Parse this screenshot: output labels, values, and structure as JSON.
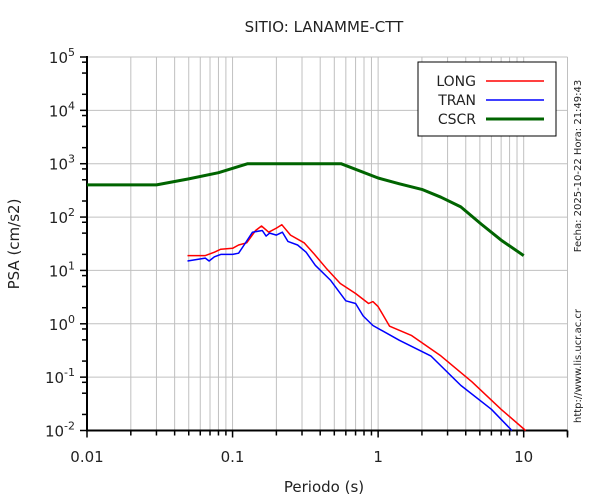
{
  "chart_data": {
    "type": "line",
    "title": "SITIO: LANAMME-CTT",
    "xlabel": "Periodo (s)",
    "ylabel": "PSA (cm/s2)",
    "xscale": "log",
    "yscale": "log",
    "xlim": [
      0.01,
      20
    ],
    "ylim": [
      0.01,
      100000
    ],
    "x_ticks": [
      {
        "v": 0.01,
        "label": "0.01"
      },
      {
        "v": 0.1,
        "label": "0.1"
      },
      {
        "v": 1,
        "label": "1"
      },
      {
        "v": 10,
        "label": "10"
      }
    ],
    "y_ticks": [
      {
        "v": 0.01,
        "base": "10",
        "exp": "-2"
      },
      {
        "v": 0.1,
        "base": "10",
        "exp": "-1"
      },
      {
        "v": 1,
        "base": "10",
        "exp": "0"
      },
      {
        "v": 10,
        "base": "10",
        "exp": "1"
      },
      {
        "v": 100,
        "base": "10",
        "exp": "2"
      },
      {
        "v": 1000,
        "base": "10",
        "exp": "3"
      },
      {
        "v": 10000,
        "base": "10",
        "exp": "4"
      },
      {
        "v": 100000,
        "base": "10",
        "exp": "5"
      }
    ],
    "grid": true,
    "legend_position": "top-right",
    "side_notes": [
      "Fecha: 2025-10-22  Hora: 21:49:43",
      "http://www.lis.ucr.ac.cr"
    ],
    "series": [
      {
        "name": "LONG",
        "color": "#ff0000",
        "width": 1.5,
        "x": [
          0.049,
          0.065,
          0.075,
          0.083,
          0.1,
          0.11,
          0.125,
          0.144,
          0.158,
          0.177,
          0.2,
          0.218,
          0.25,
          0.31,
          0.36,
          0.44,
          0.55,
          0.7,
          0.86,
          0.92,
          1.0,
          1.2,
          1.7,
          2.7,
          4.4,
          7.0,
          10.3
        ],
        "y": [
          19,
          19,
          22,
          25,
          26,
          30,
          33,
          56,
          68,
          52,
          62,
          72,
          46,
          33,
          21,
          11,
          5.7,
          3.7,
          2.4,
          2.6,
          2.1,
          0.9,
          0.6,
          0.25,
          0.082,
          0.025,
          0.01
        ]
      },
      {
        "name": "TRAN",
        "color": "#0000ff",
        "width": 1.5,
        "x": [
          0.049,
          0.065,
          0.069,
          0.075,
          0.083,
          0.1,
          0.11,
          0.12,
          0.137,
          0.16,
          0.17,
          0.18,
          0.2,
          0.22,
          0.24,
          0.28,
          0.32,
          0.37,
          0.47,
          0.6,
          0.7,
          0.79,
          0.92,
          1.4,
          2.3,
          3.7,
          6.0,
          8.3
        ],
        "y": [
          15,
          17,
          15,
          18,
          20,
          20,
          21,
          30,
          52,
          56,
          44,
          50,
          46,
          52,
          35,
          30,
          22,
          12.5,
          6.6,
          2.7,
          2.4,
          1.4,
          0.93,
          0.49,
          0.25,
          0.07,
          0.025,
          0.01
        ]
      },
      {
        "name": "CSCR",
        "color": "#006400",
        "width": 3,
        "x": [
          0.01,
          0.03,
          0.05,
          0.08,
          0.127,
          0.2,
          0.3,
          0.556,
          1.0,
          1.4,
          2.0,
          2.7,
          3.7,
          5.1,
          7.0,
          10.0
        ],
        "y": [
          400,
          400,
          520,
          680,
          1000,
          1000,
          1000,
          1000,
          540,
          420,
          330,
          236,
          155,
          74,
          37,
          19
        ]
      }
    ]
  }
}
